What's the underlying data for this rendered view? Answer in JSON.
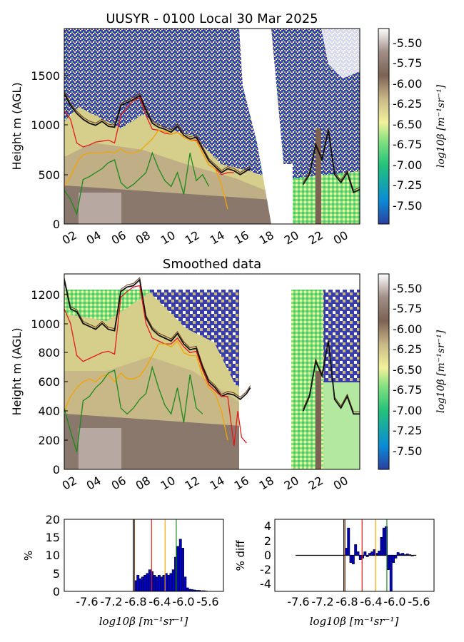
{
  "colors": {
    "hist_bar": "#0000cc",
    "line_black": "#111111",
    "line_brown": "#6b3a12",
    "line_red": "#e11b1b",
    "line_orange": "#f4a300",
    "line_green": "#1a8a1a",
    "colormap": [
      "#2c3fa0",
      "#0a8bd6",
      "#22c27a",
      "#7fe07f",
      "#f2f29a",
      "#c9b887",
      "#7b6253",
      "#a08d86",
      "#ffffff"
    ]
  },
  "top_panel": {
    "title": "UUSYR - 0100 Local 30 Mar 2025",
    "ylabel": "Height m (AGL)",
    "yticks": [
      "0",
      "500",
      "1000",
      "1500"
    ],
    "xticks": [
      "02",
      "04",
      "06",
      "08",
      "10",
      "12",
      "14",
      "16",
      "18",
      "20",
      "22",
      "00"
    ],
    "colorbar_ticks": [
      "-5.50",
      "-5.75",
      "-6.00",
      "-6.25",
      "-6.50",
      "-6.75",
      "-7.00",
      "-7.25",
      "-7.50"
    ],
    "colorbar_label": "log10β [m⁻¹sr⁻¹]"
  },
  "mid_panel": {
    "title": "Smoothed data",
    "ylabel": "Height m (AGL)",
    "yticks": [
      "0",
      "200",
      "400",
      "600",
      "800",
      "1000",
      "1200"
    ],
    "xticks": [
      "02",
      "04",
      "06",
      "08",
      "10",
      "12",
      "14",
      "16",
      "18",
      "20",
      "22",
      "00"
    ],
    "colorbar_ticks": [
      "-5.50",
      "-5.75",
      "-6.00",
      "-6.25",
      "-6.50",
      "-6.75",
      "-7.00",
      "-7.25",
      "-7.50"
    ],
    "colorbar_label": "log10β [m⁻¹sr⁻¹]"
  },
  "hist_left": {
    "ylabel": "%",
    "xlabel": "log10β [m⁻¹sr⁻¹]",
    "yticks": [
      "0",
      "5",
      "10",
      "15",
      "20"
    ],
    "xticks": [
      "-7.6",
      "-7.2",
      "-6.8",
      "-6.4",
      "-6.0",
      "-5.6"
    ]
  },
  "hist_right": {
    "ylabel": "% diff",
    "xlabel": "log10β [m⁻¹sr⁻¹]",
    "yticks": [
      "-4",
      "-2",
      "0",
      "2",
      "4"
    ],
    "xticks": [
      "-7.6",
      "-7.2",
      "-6.8",
      "-6.4",
      "-6.0",
      "-5.6"
    ]
  },
  "chart_data": [
    {
      "type": "heatmap",
      "title": "UUSYR - 0100 Local 30 Mar 2025",
      "xlabel": "",
      "ylabel": "Height m (AGL)",
      "x_hours": [
        1.5,
        25.0
      ],
      "ylim": [
        0,
        1980
      ],
      "clim": [
        -7.65,
        -5.35
      ],
      "series": [
        {
          "name": "",
          "color": "black",
          "x": [
            1.5,
            2.0,
            2.5,
            3.0,
            3.5,
            4.0,
            4.5,
            5.0,
            5.5,
            6.0,
            6.5,
            7.0,
            7.5,
            8.0,
            8.5,
            9.0,
            9.5,
            10.0,
            10.5,
            11.0,
            11.5,
            12.0,
            12.5,
            13.0,
            13.5,
            14.0,
            14.5,
            15.0,
            15.5,
            16.0,
            16.3
          ],
          "y": [
            1320,
            1200,
            1120,
            1060,
            1020,
            1000,
            1040,
            990,
            980,
            1200,
            1230,
            1260,
            1300,
            1150,
            1020,
            980,
            960,
            930,
            990,
            900,
            860,
            880,
            760,
            640,
            580,
            520,
            560,
            540,
            500,
            540,
            560
          ]
        },
        {
          "name": "",
          "color": "black",
          "x": [
            20.5,
            21.0,
            21.5,
            22.0,
            22.5,
            23.0,
            23.5,
            24.0,
            24.5,
            25.0
          ],
          "y": [
            400,
            500,
            800,
            650,
            950,
            500,
            420,
            520,
            320,
            350
          ]
        },
        {
          "name": "",
          "color": "red",
          "x": [
            1.5,
            2.0,
            2.5,
            3.0,
            3.5,
            4.0,
            4.5,
            5.0,
            5.5,
            6.0,
            6.5,
            7.0,
            7.5,
            8.0,
            8.5,
            9.0,
            9.5,
            10.0,
            10.5,
            11.0,
            11.5,
            12.0,
            12.5,
            13.0,
            13.5,
            14.0,
            14.5,
            15.0
          ],
          "y": [
            1150,
            1060,
            820,
            780,
            800,
            830,
            840,
            850,
            820,
            1100,
            1180,
            1250,
            1280,
            1100,
            960,
            950,
            920,
            910,
            930,
            880,
            850,
            850,
            720,
            600,
            560,
            500,
            520,
            520
          ]
        },
        {
          "name": "",
          "color": "orange",
          "x": [
            1.5,
            2.0,
            2.5,
            3.0,
            3.5,
            4.0,
            4.5,
            5.0,
            5.5,
            6.0,
            6.5,
            7.0,
            7.5,
            8.0,
            8.5,
            9.0,
            9.5,
            10.0,
            10.5,
            11.0,
            11.5,
            12.0,
            12.5,
            13.0,
            13.5,
            14.0,
            14.5
          ],
          "y": [
            380,
            480,
            620,
            700,
            720,
            720,
            720,
            730,
            720,
            760,
            720,
            720,
            740,
            800,
            860,
            950,
            940,
            910,
            930,
            880,
            850,
            840,
            720,
            600,
            560,
            400,
            150
          ]
        },
        {
          "name": "",
          "color": "green",
          "x": [
            1.5,
            2.0,
            2.5,
            3.0,
            3.5,
            4.0,
            4.5,
            5.0,
            5.5,
            6.0,
            6.5,
            7.0,
            7.5,
            8.0,
            8.5,
            9.0,
            9.5,
            10.0,
            10.5,
            11.0,
            11.5,
            12.0,
            12.5,
            13.0
          ],
          "y": [
            340,
            250,
            100,
            450,
            480,
            520,
            560,
            620,
            650,
            420,
            360,
            400,
            460,
            520,
            720,
            560,
            440,
            380,
            520,
            300,
            720,
            440,
            500,
            380
          ]
        }
      ]
    },
    {
      "type": "heatmap",
      "title": "Smoothed data",
      "xlabel": "",
      "ylabel": "Height m (AGL)",
      "x_hours": [
        1.5,
        25.0
      ],
      "ylim": [
        0,
        1340
      ],
      "clim": [
        -7.65,
        -5.35
      ],
      "series": [
        {
          "name": "",
          "color": "black",
          "x": [
            1.5,
            2.0,
            2.5,
            3.0,
            3.5,
            4.0,
            4.5,
            5.0,
            5.5,
            6.0,
            6.5,
            7.0,
            7.5,
            8.0,
            8.5,
            9.0,
            9.5,
            10.0,
            10.5,
            11.0,
            11.5,
            12.0,
            12.5,
            13.0,
            13.5,
            14.0,
            14.5,
            15.0,
            15.5,
            16.0,
            16.3
          ],
          "y": [
            1300,
            1100,
            1080,
            1000,
            980,
            960,
            1000,
            960,
            950,
            1220,
            1250,
            1260,
            1300,
            1040,
            960,
            920,
            900,
            880,
            930,
            860,
            820,
            830,
            700,
            600,
            560,
            500,
            520,
            510,
            480,
            520,
            560
          ]
        },
        {
          "name": "",
          "color": "black",
          "x": [
            20.5,
            21.0,
            21.5,
            22.0,
            22.5,
            23.0,
            23.5,
            24.0,
            24.5,
            25.0
          ],
          "y": [
            400,
            500,
            740,
            640,
            880,
            480,
            420,
            500,
            380,
            380
          ]
        },
        {
          "name": "",
          "color": "red",
          "x": [
            1.5,
            2.0,
            2.5,
            3.0,
            3.5,
            4.0,
            4.5,
            5.0,
            5.5,
            6.0,
            6.5,
            7.0,
            7.5,
            8.0,
            8.5,
            9.0,
            9.5,
            10.0,
            10.5,
            11.0,
            11.5,
            12.0,
            12.5,
            13.0,
            13.5,
            14.0,
            14.5,
            15.0,
            15.3,
            15.6,
            16.0
          ],
          "y": [
            1100,
            1000,
            780,
            740,
            760,
            780,
            800,
            810,
            790,
            1180,
            1220,
            1250,
            1260,
            1000,
            900,
            880,
            860,
            860,
            900,
            840,
            800,
            810,
            680,
            580,
            540,
            500,
            500,
            160,
            400,
            220,
            180
          ]
        },
        {
          "name": "",
          "color": "orange",
          "x": [
            1.5,
            2.0,
            2.5,
            3.0,
            3.5,
            4.0,
            4.5,
            5.0,
            5.5,
            6.0,
            6.5,
            7.0,
            7.5,
            8.0,
            8.5,
            9.0,
            9.5,
            10.0,
            10.5,
            11.0,
            11.5,
            12.0,
            12.5,
            13.0,
            13.5,
            14.0,
            14.5
          ],
          "y": [
            400,
            500,
            560,
            600,
            620,
            600,
            640,
            650,
            600,
            660,
            620,
            620,
            640,
            700,
            780,
            860,
            860,
            840,
            880,
            800,
            780,
            780,
            640,
            560,
            520,
            400,
            200
          ]
        },
        {
          "name": "",
          "color": "green",
          "x": [
            1.5,
            2.0,
            2.5,
            3.0,
            3.5,
            4.0,
            4.5,
            5.0,
            5.5,
            6.0,
            6.5,
            7.0,
            7.5,
            8.0,
            8.5,
            9.0,
            9.5,
            10.0,
            10.5,
            11.0,
            11.5,
            12.0,
            12.5
          ],
          "y": [
            420,
            260,
            120,
            470,
            500,
            560,
            600,
            660,
            680,
            420,
            380,
            420,
            480,
            520,
            700,
            560,
            440,
            380,
            560,
            320,
            650,
            420,
            380
          ]
        }
      ]
    },
    {
      "type": "bar",
      "title": "",
      "xlabel": "log10β [m⁻¹sr⁻¹]",
      "ylabel": "%",
      "ylim": [
        0,
        20
      ],
      "x": [
        -6.74,
        -6.7,
        -6.66,
        -6.62,
        -6.58,
        -6.54,
        -6.5,
        -6.46,
        -6.42,
        -6.38,
        -6.34,
        -6.3,
        -6.26,
        -6.22,
        -6.18,
        -6.14,
        -6.1,
        -6.06,
        -6.02,
        -5.98,
        -5.94,
        -5.9,
        -5.86,
        -5.82,
        -5.78,
        -5.74,
        -5.7,
        -5.66,
        -5.62,
        -5.58,
        -5.54
      ],
      "values": [
        3,
        4.5,
        3.5,
        4,
        4.5,
        5,
        6,
        5.5,
        4.5,
        4,
        4.5,
        4,
        4.5,
        5,
        4.5,
        5,
        6,
        9.5,
        12.5,
        14.5,
        12,
        4,
        1,
        0.6,
        0.5,
        0.4,
        0.3,
        0.3,
        0.2,
        0.2,
        0.1
      ],
      "vlines": [
        {
          "x": -6.78,
          "color": "black"
        },
        {
          "x": -6.76,
          "color": "brown"
        },
        {
          "x": -6.47,
          "color": "red"
        },
        {
          "x": -6.24,
          "color": "orange"
        },
        {
          "x": -6.05,
          "color": "green"
        }
      ]
    },
    {
      "type": "bar",
      "title": "",
      "xlabel": "log10β [m⁻¹sr⁻¹]",
      "ylabel": "% diff",
      "ylim": [
        -5,
        5
      ],
      "x": [
        -6.74,
        -6.7,
        -6.66,
        -6.62,
        -6.58,
        -6.54,
        -6.5,
        -6.46,
        -6.42,
        -6.38,
        -6.34,
        -6.3,
        -6.26,
        -6.22,
        -6.18,
        -6.14,
        -6.1,
        -6.06,
        -6.02,
        -5.98,
        -5.94,
        -5.9,
        -5.86,
        -5.82,
        -5.78,
        -5.74,
        -5.7,
        -5.66,
        -5.62
      ],
      "values": [
        1,
        3.8,
        -1,
        -1.2,
        1.5,
        0.5,
        -0.6,
        -0.4,
        0.5,
        -0.2,
        0.3,
        0.5,
        0.8,
        0.3,
        0.6,
        2.5,
        3.8,
        4,
        -2,
        -5,
        -1,
        -0.4,
        0.4,
        0.2,
        0.3,
        0.1,
        0.2,
        0.1,
        -0.1
      ],
      "vlines": [
        {
          "x": -6.78,
          "color": "black"
        },
        {
          "x": -6.76,
          "color": "brown"
        },
        {
          "x": -6.47,
          "color": "red"
        },
        {
          "x": -6.24,
          "color": "orange"
        },
        {
          "x": -6.05,
          "color": "green"
        }
      ]
    }
  ]
}
